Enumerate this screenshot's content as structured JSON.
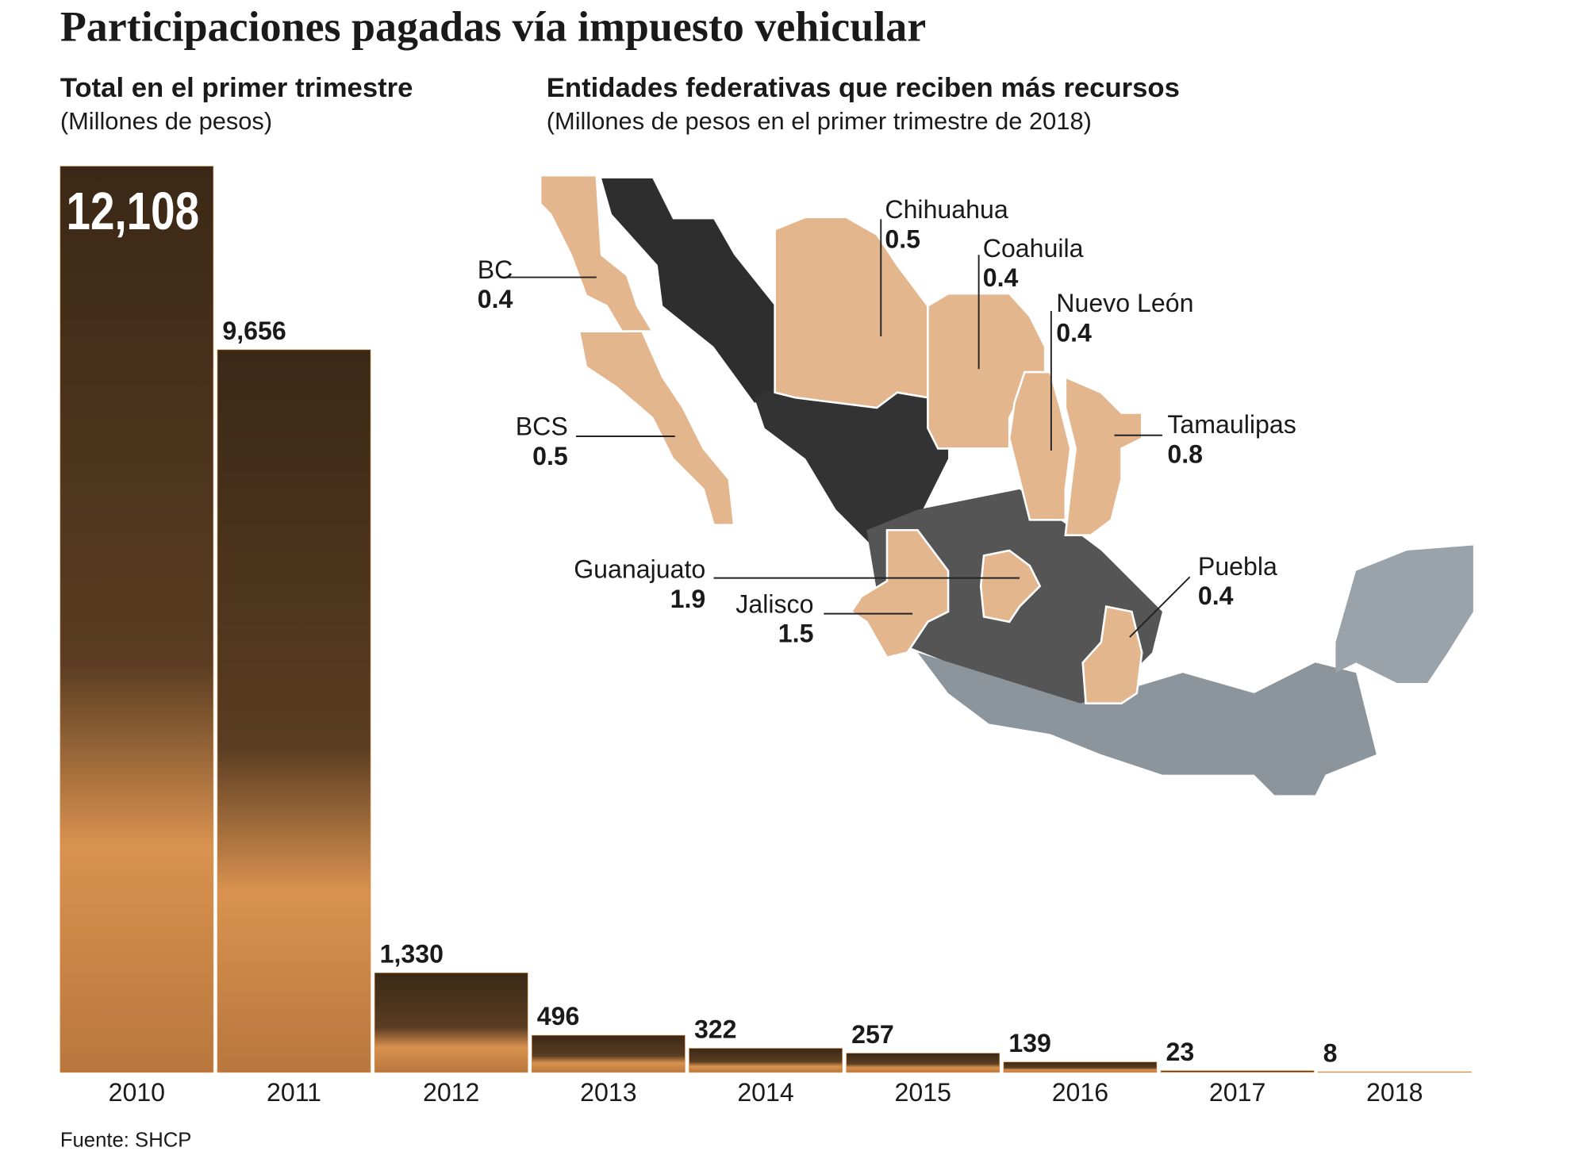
{
  "title": "Participaciones pagadas vía impuesto vehicular",
  "source": "Fuente: SHCP",
  "chart_data": [
    {
      "type": "bar",
      "title": "Total en el primer trimestre",
      "subtitle": "(Millones de pesos)",
      "categories": [
        "2010",
        "2011",
        "2012",
        "2013",
        "2014",
        "2015",
        "2016",
        "2017",
        "2018"
      ],
      "values": [
        12108,
        9656,
        1330,
        496,
        322,
        257,
        139,
        23,
        8
      ],
      "value_labels": [
        "12,108",
        "9,656",
        "1,330",
        "496",
        "322",
        "257",
        "139",
        "23",
        "8"
      ],
      "color": "#d9924f"
    },
    {
      "type": "map",
      "title": "Entidades federativas que reciben más recursos",
      "subtitle": "(Millones de pesos en el primer trimestre de 2018)",
      "categories": [
        "BC",
        "BCS",
        "Chihuahua",
        "Coahuila",
        "Nuevo León",
        "Tamaulipas",
        "Guanajuato",
        "Jalisco",
        "Puebla"
      ],
      "values": [
        0.4,
        0.5,
        0.5,
        0.4,
        0.4,
        0.8,
        1.9,
        1.5,
        0.4
      ],
      "color": "#e3b68e"
    }
  ]
}
